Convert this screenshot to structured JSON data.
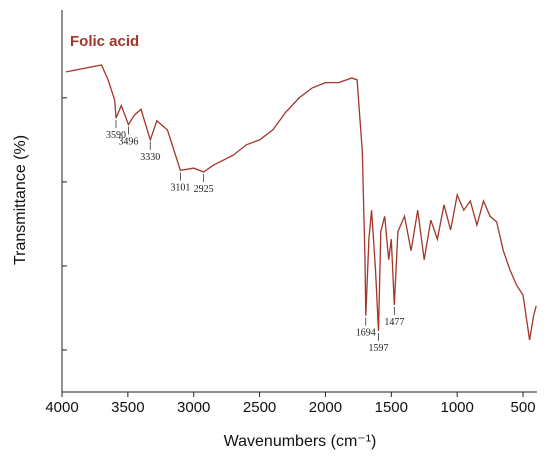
{
  "chart_data": {
    "type": "line",
    "xlabel": "Wavenumbers (cm⁻¹)",
    "ylabel": "Transmittance (%)",
    "xlim": [
      4000,
      394
    ],
    "xticks": [
      4000,
      3500,
      3000,
      2500,
      2000,
      1500,
      1000,
      500
    ],
    "ylim": [
      0,
      100
    ],
    "yticks": [
      11,
      33,
      55,
      77
    ],
    "legend": "top-left",
    "series": [
      {
        "name": "Folic acid",
        "color": "#a3352a",
        "x": [
          3970,
          3700,
          3650,
          3600,
          3590,
          3550,
          3496,
          3450,
          3400,
          3330,
          3280,
          3200,
          3101,
          3000,
          2925,
          2850,
          2700,
          2600,
          2500,
          2400,
          2300,
          2200,
          2100,
          2000,
          1900,
          1800,
          1760,
          1720,
          1700,
          1694,
          1670,
          1650,
          1620,
          1597,
          1580,
          1550,
          1520,
          1500,
          1477,
          1450,
          1400,
          1350,
          1300,
          1250,
          1200,
          1150,
          1100,
          1050,
          1000,
          950,
          900,
          850,
          800,
          750,
          700,
          650,
          600,
          550,
          500,
          450,
          420,
          400
        ],
        "values": [
          83.8,
          85.6,
          81.7,
          76.4,
          71.7,
          75,
          70,
          72.5,
          74,
          66,
          71,
          68.6,
          58,
          58.6,
          57.6,
          59.4,
          62,
          64.7,
          66,
          68.6,
          73.3,
          77,
          79.6,
          81,
          81,
          82.2,
          81.7,
          63,
          34.6,
          20,
          40,
          47.6,
          32,
          16,
          42,
          46,
          34.6,
          40,
          22.8,
          42,
          46,
          37,
          47.6,
          34.6,
          45,
          40,
          49,
          42.4,
          51.6,
          47.6,
          50,
          43.7,
          50,
          46,
          44.5,
          37,
          32,
          28,
          25.4,
          13.6,
          20,
          22.5
        ]
      }
    ],
    "annotations": [
      {
        "text": "3590",
        "x": 3590
      },
      {
        "text": "3496",
        "x": 3496
      },
      {
        "text": "3330",
        "x": 3330
      },
      {
        "text": "3101",
        "x": 3101
      },
      {
        "text": "2925",
        "x": 2925
      },
      {
        "text": "1694",
        "x": 1694
      },
      {
        "text": "1597",
        "x": 1597
      },
      {
        "text": "1477",
        "x": 1477
      }
    ]
  }
}
